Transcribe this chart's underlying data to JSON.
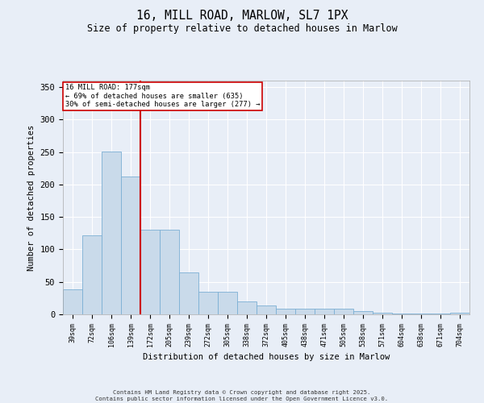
{
  "title_line1": "16, MILL ROAD, MARLOW, SL7 1PX",
  "title_line2": "Size of property relative to detached houses in Marlow",
  "xlabel": "Distribution of detached houses by size in Marlow",
  "ylabel": "Number of detached properties",
  "categories": [
    "39sqm",
    "72sqm",
    "106sqm",
    "139sqm",
    "172sqm",
    "205sqm",
    "239sqm",
    "272sqm",
    "305sqm",
    "338sqm",
    "372sqm",
    "405sqm",
    "438sqm",
    "471sqm",
    "505sqm",
    "538sqm",
    "571sqm",
    "604sqm",
    "638sqm",
    "671sqm",
    "704sqm"
  ],
  "values": [
    38,
    122,
    251,
    212,
    130,
    130,
    65,
    35,
    35,
    20,
    14,
    9,
    9,
    9,
    9,
    5,
    3,
    1,
    1,
    1,
    3
  ],
  "bar_color": "#c9daea",
  "bar_edgecolor": "#7bafd4",
  "vline_x": 3.5,
  "annotation_line1": "16 MILL ROAD: 177sqm",
  "annotation_line2": "← 69% of detached houses are smaller (635)",
  "annotation_line3": "30% of semi-detached houses are larger (277) →",
  "vline_color": "#cc0000",
  "annotation_box_edgecolor": "#cc0000",
  "ylim": [
    0,
    360
  ],
  "yticks": [
    0,
    50,
    100,
    150,
    200,
    250,
    300,
    350
  ],
  "background_color": "#e8eef7",
  "grid_color": "#ffffff",
  "footer_line1": "Contains HM Land Registry data © Crown copyright and database right 2025.",
  "footer_line2": "Contains public sector information licensed under the Open Government Licence v3.0."
}
